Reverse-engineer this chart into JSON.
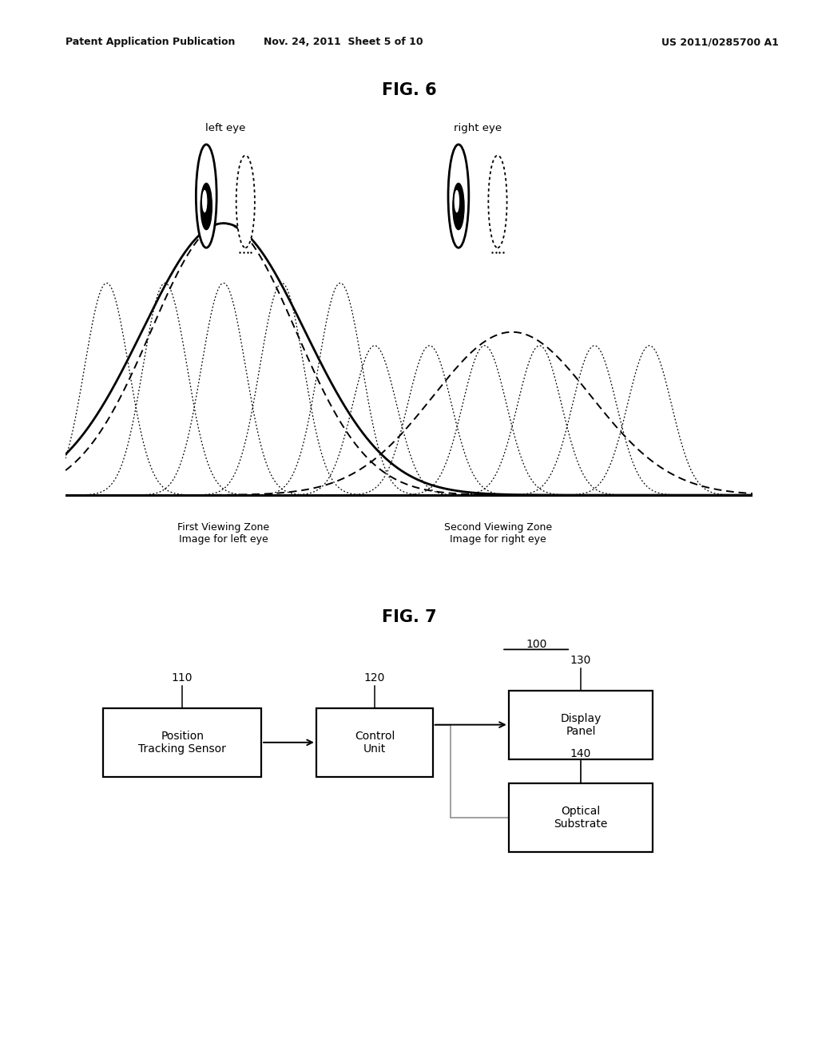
{
  "bg_color": "#ffffff",
  "header_left": "Patent Application Publication",
  "header_mid": "Nov. 24, 2011  Sheet 5 of 10",
  "header_right": "US 2011/0285700 A1",
  "fig6_title": "FIG. 6",
  "fig7_title": "FIG. 7",
  "fig6_label_left": "left eye",
  "fig6_label_right": "right eye",
  "fig6_zone1_label": "First Viewing Zone\nImage for left eye",
  "fig6_zone2_label": "Second Viewing Zone\nImage for right eye",
  "fig7_label_100": "100",
  "fig7_label_110": "110",
  "fig7_label_120": "120",
  "fig7_label_130": "130",
  "fig7_label_140": "140",
  "fig7_box1": "Position\nTracking Sensor",
  "fig7_box2": "Control\nUnit",
  "fig7_box3": "Display\nPanel",
  "fig7_box4": "Optical\nSubstrate"
}
